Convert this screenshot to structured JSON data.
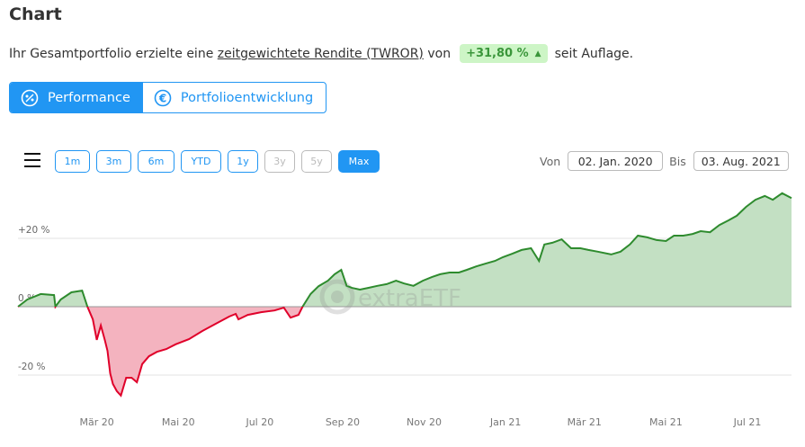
{
  "header": {
    "title": "Chart"
  },
  "summary": {
    "prefix": "Ihr Gesamtportfolio erzielte eine",
    "link": "zeitgewichtete Rendite (TWROR)",
    "mid": "von",
    "value": "+31,80 %",
    "trend_icon": "triangle-up-icon",
    "suffix": "seit Auflage."
  },
  "tabs": [
    {
      "label": "Performance",
      "icon": "performance-icon",
      "active": true
    },
    {
      "label": "Portfolioentwicklung",
      "icon": "euro-icon",
      "active": false
    }
  ],
  "toolbar": {
    "menu_icon": "hamburger-menu-icon",
    "ranges": [
      {
        "label": "1m",
        "state": "enabled"
      },
      {
        "label": "3m",
        "state": "enabled"
      },
      {
        "label": "6m",
        "state": "enabled"
      },
      {
        "label": "YTD",
        "state": "enabled"
      },
      {
        "label": "1y",
        "state": "enabled"
      },
      {
        "label": "3y",
        "state": "disabled"
      },
      {
        "label": "5y",
        "state": "disabled"
      },
      {
        "label": "Max",
        "state": "selected"
      }
    ],
    "from_label": "Von",
    "from_value": "02. Jan. 2020",
    "to_label": "Bis",
    "to_value": "03. Aug. 2021"
  },
  "colors": {
    "accent": "#2196f3",
    "positive_line": "#2e8b2e",
    "positive_fill": "#c3e0c3",
    "negative_line": "#e0002a",
    "negative_fill": "#f4b3bf",
    "badge_bg": "#cdf5c6",
    "badge_text": "#3a963a"
  },
  "watermark": "extraETF",
  "chart_data": {
    "type": "area",
    "y_ticks": [
      {
        "value": 20,
        "label": "+20 %"
      },
      {
        "value": 0,
        "label": "0 %"
      },
      {
        "value": -20,
        "label": "-20 %"
      }
    ],
    "x_ticks": [
      {
        "date": "2020-03-01",
        "label": "Mär 20"
      },
      {
        "date": "2020-05-01",
        "label": "Mai 20"
      },
      {
        "date": "2020-07-01",
        "label": "Jul 20"
      },
      {
        "date": "2020-09-01",
        "label": "Sep 20"
      },
      {
        "date": "2020-11-01",
        "label": "Nov 20"
      },
      {
        "date": "2021-01-01",
        "label": "Jan 21"
      },
      {
        "date": "2021-03-01",
        "label": "Mär 21"
      },
      {
        "date": "2021-05-01",
        "label": "Mai 21"
      },
      {
        "date": "2021-07-01",
        "label": "Jul 21"
      }
    ],
    "xlim": [
      "2020-01-02",
      "2021-08-03"
    ],
    "ylim": [
      -26,
      33
    ],
    "grid": true,
    "points": [
      [
        "2020-01-02",
        0
      ],
      [
        "2020-01-09",
        2.1
      ],
      [
        "2020-01-19",
        3.7
      ],
      [
        "2020-01-29",
        3.4
      ],
      [
        "2020-01-30",
        0
      ],
      [
        "2020-02-03",
        2.1
      ],
      [
        "2020-02-11",
        4.2
      ],
      [
        "2020-02-19",
        4.7
      ],
      [
        "2020-02-23",
        0
      ],
      [
        "2020-02-27",
        -3.7
      ],
      [
        "2020-03-01",
        -9.7
      ],
      [
        "2020-03-04",
        -5.5
      ],
      [
        "2020-03-07",
        -9.7
      ],
      [
        "2020-03-09",
        -12.9
      ],
      [
        "2020-03-11",
        -19.5
      ],
      [
        "2020-03-13",
        -22.6
      ],
      [
        "2020-03-16",
        -24.7
      ],
      [
        "2020-03-19",
        -26
      ],
      [
        "2020-03-23",
        -20.8
      ],
      [
        "2020-03-27",
        -20.8
      ],
      [
        "2020-03-31",
        -22.1
      ],
      [
        "2020-04-04",
        -16.8
      ],
      [
        "2020-04-09",
        -14.5
      ],
      [
        "2020-04-15",
        -13.2
      ],
      [
        "2020-04-22",
        -12.4
      ],
      [
        "2020-04-29",
        -11
      ],
      [
        "2020-05-09",
        -9.5
      ],
      [
        "2020-05-19",
        -7.1
      ],
      [
        "2020-05-29",
        -5
      ],
      [
        "2020-06-08",
        -2.9
      ],
      [
        "2020-06-13",
        -2.1
      ],
      [
        "2020-06-15",
        -3.7
      ],
      [
        "2020-06-22",
        -2.4
      ],
      [
        "2020-07-02",
        -1.6
      ],
      [
        "2020-07-12",
        -1.1
      ],
      [
        "2020-07-19",
        -0.3
      ],
      [
        "2020-07-24",
        -3.2
      ],
      [
        "2020-07-30",
        -2.4
      ],
      [
        "2020-08-02",
        0
      ],
      [
        "2020-08-08",
        3.7
      ],
      [
        "2020-08-14",
        6
      ],
      [
        "2020-08-21",
        7.6
      ],
      [
        "2020-08-26",
        9.5
      ],
      [
        "2020-08-31",
        10.8
      ],
      [
        "2020-09-04",
        6.1
      ],
      [
        "2020-09-08",
        5.5
      ],
      [
        "2020-09-14",
        5
      ],
      [
        "2020-09-20",
        5.5
      ],
      [
        "2020-09-27",
        6.1
      ],
      [
        "2020-10-04",
        6.6
      ],
      [
        "2020-10-11",
        7.6
      ],
      [
        "2020-10-17",
        6.8
      ],
      [
        "2020-10-24",
        6.1
      ],
      [
        "2020-10-31",
        7.6
      ],
      [
        "2020-11-07",
        8.7
      ],
      [
        "2020-11-13",
        9.5
      ],
      [
        "2020-11-20",
        10
      ],
      [
        "2020-11-27",
        10
      ],
      [
        "2020-12-03",
        10.8
      ],
      [
        "2020-12-10",
        11.8
      ],
      [
        "2020-12-17",
        12.6
      ],
      [
        "2020-12-24",
        13.4
      ],
      [
        "2020-12-30",
        14.5
      ],
      [
        "2021-01-06",
        15.5
      ],
      [
        "2021-01-13",
        16.6
      ],
      [
        "2021-01-20",
        17.1
      ],
      [
        "2021-01-26",
        13.4
      ],
      [
        "2021-01-30",
        18.2
      ],
      [
        "2021-02-05",
        18.7
      ],
      [
        "2021-02-12",
        19.7
      ],
      [
        "2021-02-19",
        17.1
      ],
      [
        "2021-02-26",
        17.1
      ],
      [
        "2021-03-04",
        16.6
      ],
      [
        "2021-03-11",
        16.1
      ],
      [
        "2021-03-21",
        15.3
      ],
      [
        "2021-03-28",
        16.1
      ],
      [
        "2021-04-04",
        18.2
      ],
      [
        "2021-04-10",
        20.8
      ],
      [
        "2021-04-17",
        20.3
      ],
      [
        "2021-04-24",
        19.5
      ],
      [
        "2021-05-01",
        19.2
      ],
      [
        "2021-05-07",
        20.8
      ],
      [
        "2021-05-14",
        20.8
      ],
      [
        "2021-05-21",
        21.3
      ],
      [
        "2021-05-27",
        22.1
      ],
      [
        "2021-06-03",
        21.8
      ],
      [
        "2021-06-10",
        23.9
      ],
      [
        "2021-06-17",
        25.3
      ],
      [
        "2021-06-23",
        26.6
      ],
      [
        "2021-06-30",
        29.2
      ],
      [
        "2021-07-07",
        31.3
      ],
      [
        "2021-07-14",
        32.4
      ],
      [
        "2021-07-20",
        31.3
      ],
      [
        "2021-07-27",
        33.2
      ],
      [
        "2021-08-03",
        31.8
      ]
    ]
  }
}
